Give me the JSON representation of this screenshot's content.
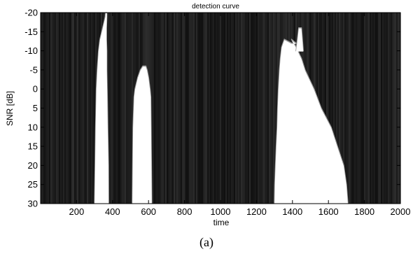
{
  "chart_data": {
    "type": "heatmap",
    "title": "detection curve",
    "xlabel": "time",
    "ylabel": "SNR [dB]",
    "xlim": [
      0,
      2000
    ],
    "ylim": [
      -20,
      30
    ],
    "y_reversed": true,
    "x_ticks": [
      200,
      400,
      600,
      800,
      1000,
      1200,
      1400,
      1600,
      1800,
      2000
    ],
    "y_ticks": [
      -20,
      -15,
      -10,
      -5,
      0,
      5,
      10,
      15,
      20,
      25,
      30
    ],
    "grid": false,
    "colormap": "gray",
    "detection_regions": [
      {
        "name": "",
        "x_start": 300,
        "x_end": 380,
        "boundary": [
          {
            "snr": 30,
            "x_start": 300,
            "x_end": 378
          },
          {
            "snr": 20,
            "x_start": 303,
            "x_end": 377
          },
          {
            "snr": 10,
            "x_start": 306,
            "x_end": 373
          },
          {
            "snr": 0,
            "x_start": 310,
            "x_end": 370
          },
          {
            "snr": -5,
            "x_start": 315,
            "x_end": 368
          },
          {
            "snr": -10,
            "x_start": 322,
            "x_end": 368
          },
          {
            "snr": -13,
            "x_start": 330,
            "x_end": 366
          },
          {
            "snr": -16,
            "x_start": 345,
            "x_end": 366
          },
          {
            "snr": -19,
            "x_start": 360,
            "x_end": 368
          },
          {
            "snr": -20,
            "x_start": 362,
            "x_end": 368
          }
        ]
      },
      {
        "name": "",
        "x_start": 510,
        "x_end": 620,
        "boundary": [
          {
            "snr": 30,
            "x_start": 510,
            "x_end": 618
          },
          {
            "snr": 20,
            "x_start": 512,
            "x_end": 616
          },
          {
            "snr": 10,
            "x_start": 514,
            "x_end": 614
          },
          {
            "snr": 2,
            "x_start": 520,
            "x_end": 612
          },
          {
            "snr": 0,
            "x_start": 525,
            "x_end": 608
          },
          {
            "snr": -3,
            "x_start": 540,
            "x_end": 600
          },
          {
            "snr": -5,
            "x_start": 555,
            "x_end": 592
          },
          {
            "snr": -6,
            "x_start": 568,
            "x_end": 585
          }
        ]
      },
      {
        "name": "",
        "x_start": 1300,
        "x_end": 1710,
        "boundary": [
          {
            "snr": 30,
            "x_start": 1300,
            "x_end": 1708
          },
          {
            "snr": 25,
            "x_start": 1302,
            "x_end": 1700
          },
          {
            "snr": 20,
            "x_start": 1306,
            "x_end": 1685
          },
          {
            "snr": 15,
            "x_start": 1310,
            "x_end": 1650
          },
          {
            "snr": 10,
            "x_start": 1315,
            "x_end": 1615
          },
          {
            "snr": 5,
            "x_start": 1318,
            "x_end": 1560
          },
          {
            "snr": 0,
            "x_start": 1322,
            "x_end": 1520
          },
          {
            "snr": -5,
            "x_start": 1328,
            "x_end": 1470
          },
          {
            "snr": -8,
            "x_start": 1333,
            "x_end": 1450
          },
          {
            "snr": -11,
            "x_start": 1340,
            "x_end": 1420
          },
          {
            "snr": -13,
            "x_start": 1355,
            "x_end": 1395
          },
          {
            "snr": -12,
            "x_start": 1395,
            "x_end": 1420
          }
        ]
      },
      {
        "name": "",
        "x_start": 1420,
        "x_end": 1460,
        "boundary": [
          {
            "snr": -10,
            "x_start": 1420,
            "x_end": 1460
          },
          {
            "snr": -13,
            "x_start": 1428,
            "x_end": 1455
          },
          {
            "snr": -16,
            "x_start": 1435,
            "x_end": 1450
          }
        ]
      }
    ]
  },
  "caption": "(a)"
}
